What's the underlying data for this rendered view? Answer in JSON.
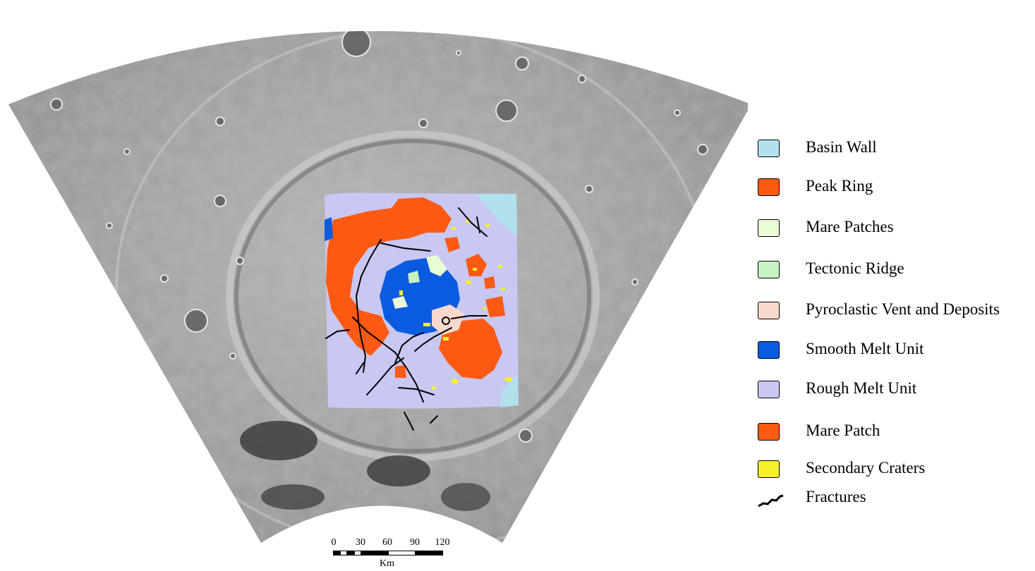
{
  "legend": [
    {
      "label": "Basin Wall",
      "color": "#b2e0ec"
    },
    {
      "label": "Peak Ring",
      "color": "#ff5a14"
    },
    {
      "label": "Mare Patches",
      "color": "#eafcd6"
    },
    {
      "label": "Tectonic Ridge",
      "color": "#c6f2c4"
    },
    {
      "label": "Pyroclastic Vent and Deposits",
      "color": "#f6d9cb"
    },
    {
      "label": "Smooth Melt Unit",
      "color": "#0a5be0"
    },
    {
      "label": "Rough Melt Unit",
      "color": "#c8c8f2"
    },
    {
      "label": "Mare Patch",
      "color": "#ff5a14"
    },
    {
      "label": "Secondary Craters",
      "color": "#f8f02a"
    }
  ],
  "fractures_label": "Fractures",
  "scale": {
    "ticks": [
      "0",
      "30",
      "60",
      "90",
      "120"
    ],
    "unit": "Km"
  },
  "colors": {
    "fracture": "#000000",
    "terrain_light": "#bdbdbd",
    "terrain_dark": "#6f6f6f"
  }
}
